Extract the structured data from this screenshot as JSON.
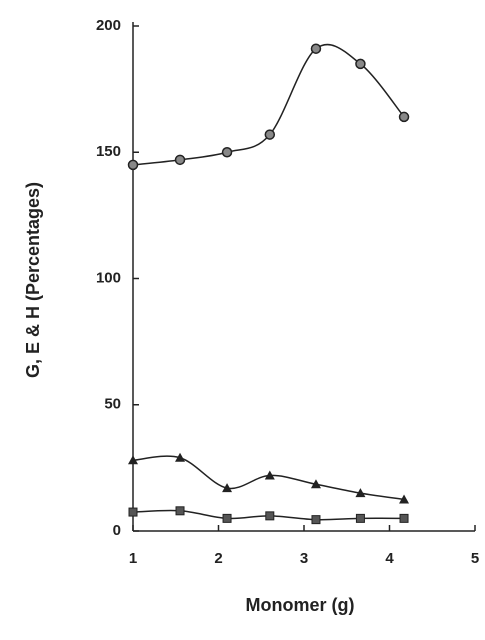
{
  "chart_data": {
    "type": "line",
    "x_label": "Monomer  (g)",
    "y_label": "G, E & H (Percentages)",
    "x": [
      1,
      1.55,
      2.1,
      2.6,
      3.14,
      3.66,
      4.17
    ],
    "series": [
      {
        "color": "#222222",
        "marker": "circle",
        "values": [
          145,
          147,
          150,
          157,
          191,
          185,
          164
        ]
      },
      {
        "color": "#222222",
        "marker": "triangle",
        "values": [
          28,
          29,
          17,
          22,
          18.5,
          15,
          12.5
        ]
      },
      {
        "color": "#222222",
        "marker": "square",
        "values": [
          7.5,
          8,
          5,
          6,
          4.5,
          5,
          5
        ]
      }
    ],
    "xlim": [
      1,
      5
    ],
    "xticks": [
      1,
      2,
      3,
      4,
      5
    ],
    "ylim": [
      0,
      200
    ],
    "yticks": [
      0,
      50,
      100,
      150,
      200
    ]
  }
}
